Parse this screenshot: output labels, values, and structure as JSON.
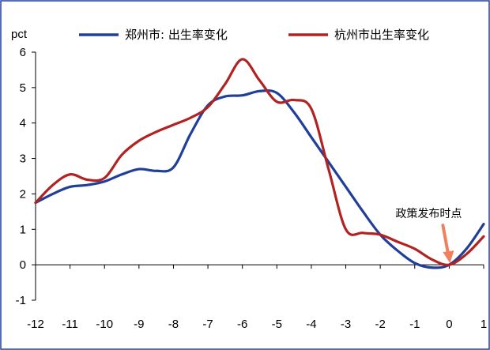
{
  "chart_data": {
    "type": "line",
    "unit_label": "pct",
    "x_ticks": [
      -12,
      -11,
      -10,
      -9,
      -8,
      -7,
      -6,
      -5,
      -4,
      -3,
      -2,
      -1,
      0,
      1
    ],
    "y_ticks": [
      -1,
      0,
      1,
      2,
      3,
      4,
      5,
      6
    ],
    "xlim": [
      -12,
      1
    ],
    "ylim": [
      -1,
      6
    ],
    "grid": false,
    "legend_position": "top",
    "series": [
      {
        "name": "郑州市: 出生率变化",
        "color": "#1f3f99",
        "x": [
          -12,
          -11.5,
          -11,
          -10.5,
          -10,
          -9.5,
          -9,
          -8.5,
          -8,
          -7.5,
          -7,
          -6.5,
          -6,
          -5.5,
          -5,
          -4.5,
          -4,
          -3.5,
          -3,
          -2.5,
          -2,
          -1.5,
          -1,
          -0.5,
          0,
          0.5,
          1
        ],
        "y": [
          1.75,
          2.0,
          2.2,
          2.25,
          2.35,
          2.55,
          2.7,
          2.65,
          2.75,
          3.7,
          4.5,
          4.75,
          4.78,
          4.9,
          4.85,
          4.3,
          3.6,
          2.9,
          2.2,
          1.5,
          0.85,
          0.4,
          0.05,
          -0.08,
          0.0,
          0.45,
          1.15
        ]
      },
      {
        "name": "杭州市出生率变化",
        "color": "#b22222",
        "x": [
          -12,
          -11.5,
          -11,
          -10.5,
          -10,
          -9.5,
          -9,
          -8.5,
          -8,
          -7.5,
          -7,
          -6.5,
          -6,
          -5.5,
          -5,
          -4.5,
          -4,
          -3.5,
          -3,
          -2.5,
          -2,
          -1.5,
          -1,
          -0.5,
          0,
          0.5,
          1
        ],
        "y": [
          1.75,
          2.25,
          2.55,
          2.4,
          2.45,
          3.1,
          3.5,
          3.75,
          3.95,
          4.15,
          4.45,
          5.1,
          5.8,
          5.2,
          4.6,
          4.65,
          4.4,
          2.7,
          1.0,
          0.9,
          0.85,
          0.65,
          0.45,
          0.15,
          0.0,
          0.3,
          0.8
        ]
      }
    ],
    "annotations": [
      {
        "text": "政策发布时点",
        "x": 0,
        "y": 0,
        "arrow_color": "#f08060"
      }
    ]
  }
}
